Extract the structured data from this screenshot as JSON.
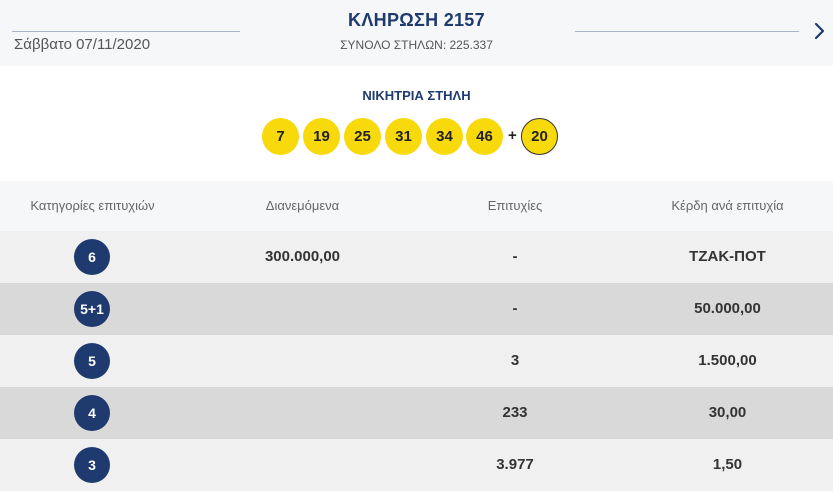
{
  "header": {
    "date": "Σάββατο 07/11/2020",
    "title": "ΚΛΗΡΩΣΗ 2157",
    "total_columns": "ΣΥΝΟΛΟ ΣΤΗΛΩΝ: 225.337",
    "next_icon": "chevron-right-icon"
  },
  "winning": {
    "title": "ΝΙΚΗΤΡΙΑ ΣΤΗΛΗ",
    "numbers": [
      "7",
      "19",
      "25",
      "31",
      "34",
      "46"
    ],
    "plus": "+",
    "bonus": "20",
    "ball_color": "#f7d90c"
  },
  "table": {
    "headers": [
      "Κατηγορίες επιτυχιών",
      "Διανεμόμενα",
      "Επιτυχίες",
      "Κέρδη ανά επιτυχία"
    ],
    "rows": [
      {
        "category": "6",
        "distributed": "300.000,00",
        "winners": "-",
        "prize": "ΤΖΑΚ-ΠΟΤ"
      },
      {
        "category": "5+1",
        "distributed": "",
        "winners": "-",
        "prize": "50.000,00"
      },
      {
        "category": "5",
        "distributed": "",
        "winners": "3",
        "prize": "1.500,00"
      },
      {
        "category": "4",
        "distributed": "",
        "winners": "233",
        "prize": "30,00"
      },
      {
        "category": "3",
        "distributed": "",
        "winners": "3.977",
        "prize": "1,50"
      }
    ]
  },
  "colors": {
    "brand": "#1e3a6e",
    "row_light": "#f0f0f0",
    "row_dark": "#d9d9d9"
  }
}
